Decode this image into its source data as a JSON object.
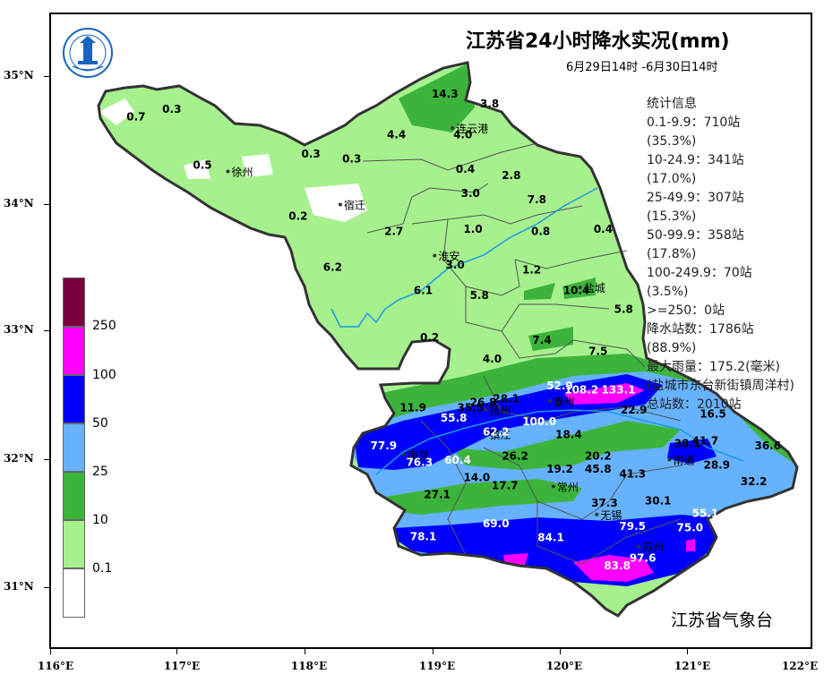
{
  "title": "江苏省24小时降水实况(mm)",
  "subtitle": "6月29日14时 -6月30日14时",
  "agency": "江苏省气象台",
  "logo_text": "江苏省气象台",
  "axes": {
    "lat_labels": [
      "35°N",
      "34°N",
      "33°N",
      "32°N",
      "31°N"
    ],
    "lon_labels": [
      "116°E",
      "117°E",
      "118°E",
      "119°E",
      "120°E",
      "121°E",
      "122°E"
    ]
  },
  "legend": {
    "labels": [
      "250",
      "100",
      "50",
      "25",
      "10",
      "0.1"
    ],
    "colors": [
      "#7a0040",
      "#ff00ff",
      "#0000ff",
      "#66b2ff",
      "#3cb43c",
      "#a6f08e",
      "#ffffff"
    ]
  },
  "stats": [
    "统计信息",
    "0.1-9.9：710站",
    "(35.3%)",
    "10-24.9：341站",
    "(17.0%)",
    "25-49.9：307站",
    "(15.3%)",
    "50-99.9：358站",
    "(17.8%)",
    "100-249.9：70站",
    "(3.5%)",
    ">=250：0站",
    "降水站数：1786站",
    "(88.9%)",
    "最大雨量：175.2(毫米)",
    "(盐城市东台新街镇周洋村)",
    "总站数：2010站"
  ],
  "cities": [
    {
      "name": "徐州",
      "lon": 117.4,
      "lat": 34.26
    },
    {
      "name": "连云港",
      "lon": 119.16,
      "lat": 34.6
    },
    {
      "name": "宿迁",
      "lon": 118.28,
      "lat": 34.0
    },
    {
      "name": "淮安",
      "lon": 119.02,
      "lat": 33.6
    },
    {
      "name": "盐城",
      "lon": 120.16,
      "lat": 33.35
    },
    {
      "name": "扬州",
      "lon": 119.42,
      "lat": 32.39
    },
    {
      "name": "泰州",
      "lon": 119.92,
      "lat": 32.46
    },
    {
      "name": "南京",
      "lon": 118.78,
      "lat": 32.04
    },
    {
      "name": "镇江",
      "lon": 119.42,
      "lat": 32.2
    },
    {
      "name": "常州",
      "lon": 119.95,
      "lat": 31.79
    },
    {
      "name": "南通",
      "lon": 120.86,
      "lat": 32.0
    },
    {
      "name": "无锡",
      "lon": 120.29,
      "lat": 31.57
    },
    {
      "name": "苏州",
      "lon": 120.62,
      "lat": 31.32
    }
  ],
  "values": [
    {
      "v": "14.3",
      "lon": 119.1,
      "lat": 34.84,
      "c": "#000"
    },
    {
      "v": "3.8",
      "lon": 119.45,
      "lat": 34.76,
      "c": "#000"
    },
    {
      "v": "0.7",
      "lon": 116.68,
      "lat": 34.66,
      "c": "#000"
    },
    {
      "v": "0.3",
      "lon": 116.96,
      "lat": 34.72,
      "c": "#000"
    },
    {
      "v": "4.4",
      "lon": 118.72,
      "lat": 34.52,
      "c": "#000"
    },
    {
      "v": "4.0",
      "lon": 119.24,
      "lat": 34.52,
      "c": "#000"
    },
    {
      "v": "0.3",
      "lon": 118.05,
      "lat": 34.37,
      "c": "#000"
    },
    {
      "v": "0.3",
      "lon": 118.37,
      "lat": 34.33,
      "c": "#000"
    },
    {
      "v": "0.5",
      "lon": 117.2,
      "lat": 34.28,
      "c": "#000"
    },
    {
      "v": "0.4",
      "lon": 119.26,
      "lat": 34.25,
      "c": "#000"
    },
    {
      "v": "2.8",
      "lon": 119.62,
      "lat": 34.2,
      "c": "#000"
    },
    {
      "v": "3.0",
      "lon": 119.3,
      "lat": 34.06,
      "c": "#000"
    },
    {
      "v": "7.8",
      "lon": 119.82,
      "lat": 34.01,
      "c": "#000"
    },
    {
      "v": "0.2",
      "lon": 117.95,
      "lat": 33.88,
      "c": "#000"
    },
    {
      "v": "2.7",
      "lon": 118.7,
      "lat": 33.76,
      "c": "#000"
    },
    {
      "v": "1.0",
      "lon": 119.32,
      "lat": 33.78,
      "c": "#000"
    },
    {
      "v": "0.8",
      "lon": 119.85,
      "lat": 33.76,
      "c": "#000"
    },
    {
      "v": "0.4",
      "lon": 120.34,
      "lat": 33.78,
      "c": "#000"
    },
    {
      "v": "6.2",
      "lon": 118.22,
      "lat": 33.48,
      "c": "#000"
    },
    {
      "v": "3.0",
      "lon": 119.18,
      "lat": 33.5,
      "c": "#000"
    },
    {
      "v": "1.2",
      "lon": 119.78,
      "lat": 33.46,
      "c": "#000"
    },
    {
      "v": "6.1",
      "lon": 118.93,
      "lat": 33.3,
      "c": "#000"
    },
    {
      "v": "5.8",
      "lon": 119.37,
      "lat": 33.26,
      "c": "#000"
    },
    {
      "v": "10.4",
      "lon": 120.13,
      "lat": 33.3,
      "c": "#000"
    },
    {
      "v": "5.8",
      "lon": 120.5,
      "lat": 33.15,
      "c": "#000"
    },
    {
      "v": "0.2",
      "lon": 118.98,
      "lat": 32.93,
      "c": "#000"
    },
    {
      "v": "7.4",
      "lon": 119.86,
      "lat": 32.91,
      "c": "#000"
    },
    {
      "v": "7.5",
      "lon": 120.3,
      "lat": 32.82,
      "c": "#000"
    },
    {
      "v": "4.0",
      "lon": 119.47,
      "lat": 32.76,
      "c": "#000"
    },
    {
      "v": "52.9",
      "lon": 120.0,
      "lat": 32.55,
      "c": "#fff"
    },
    {
      "v": "108.2",
      "lon": 120.17,
      "lat": 32.52,
      "c": "#fff"
    },
    {
      "v": "133.1",
      "lon": 120.46,
      "lat": 32.52,
      "c": "#fff"
    },
    {
      "v": "28.1",
      "lon": 119.58,
      "lat": 32.45,
      "c": "#000"
    },
    {
      "v": "26.8",
      "lon": 119.4,
      "lat": 32.42,
      "c": "#000"
    },
    {
      "v": "11.9",
      "lon": 118.85,
      "lat": 32.38,
      "c": "#000"
    },
    {
      "v": "35.5",
      "lon": 119.3,
      "lat": 32.38,
      "c": "#000"
    },
    {
      "v": "22.9",
      "lon": 120.58,
      "lat": 32.36,
      "c": "#000"
    },
    {
      "v": "16.5",
      "lon": 121.2,
      "lat": 32.33,
      "c": "#000"
    },
    {
      "v": "55.8",
      "lon": 119.17,
      "lat": 32.3,
      "c": "#fff"
    },
    {
      "v": "100.0",
      "lon": 119.84,
      "lat": 32.27,
      "c": "#fff"
    },
    {
      "v": "62.2",
      "lon": 119.5,
      "lat": 32.19,
      "c": "#fff"
    },
    {
      "v": "18.4",
      "lon": 120.07,
      "lat": 32.17,
      "c": "#000"
    },
    {
      "v": "38.1",
      "lon": 121.0,
      "lat": 32.1,
      "c": "#000"
    },
    {
      "v": "41.7",
      "lon": 121.14,
      "lat": 32.12,
      "c": "#000"
    },
    {
      "v": "36.6",
      "lon": 121.63,
      "lat": 32.08,
      "c": "#000"
    },
    {
      "v": "77.9",
      "lon": 118.62,
      "lat": 32.08,
      "c": "#fff"
    },
    {
      "v": "76.3",
      "lon": 118.9,
      "lat": 31.95,
      "c": "#fff"
    },
    {
      "v": "60.4",
      "lon": 119.2,
      "lat": 31.97,
      "c": "#fff"
    },
    {
      "v": "26.2",
      "lon": 119.65,
      "lat": 32.0,
      "c": "#000"
    },
    {
      "v": "20.2",
      "lon": 120.3,
      "lat": 32.0,
      "c": "#000"
    },
    {
      "v": "28.9",
      "lon": 121.23,
      "lat": 31.93,
      "c": "#000"
    },
    {
      "v": "19.2",
      "lon": 120.0,
      "lat": 31.9,
      "c": "#000"
    },
    {
      "v": "45.8",
      "lon": 120.3,
      "lat": 31.9,
      "c": "#000"
    },
    {
      "v": "41.3",
      "lon": 120.57,
      "lat": 31.86,
      "c": "#000"
    },
    {
      "v": "32.2",
      "lon": 121.52,
      "lat": 31.8,
      "c": "#000"
    },
    {
      "v": "14.0",
      "lon": 119.35,
      "lat": 31.83,
      "c": "#000"
    },
    {
      "v": "17.7",
      "lon": 119.57,
      "lat": 31.77,
      "c": "#000"
    },
    {
      "v": "27.1",
      "lon": 119.04,
      "lat": 31.7,
      "c": "#000"
    },
    {
      "v": "37.3",
      "lon": 120.35,
      "lat": 31.63,
      "c": "#000"
    },
    {
      "v": "30.1",
      "lon": 120.77,
      "lat": 31.65,
      "c": "#000"
    },
    {
      "v": "55.1",
      "lon": 121.14,
      "lat": 31.55,
      "c": "#fff"
    },
    {
      "v": "69.0",
      "lon": 119.5,
      "lat": 31.47,
      "c": "#fff"
    },
    {
      "v": "79.5",
      "lon": 120.57,
      "lat": 31.45,
      "c": "#fff"
    },
    {
      "v": "75.0",
      "lon": 121.02,
      "lat": 31.44,
      "c": "#fff"
    },
    {
      "v": "78.1",
      "lon": 118.93,
      "lat": 31.37,
      "c": "#fff"
    },
    {
      "v": "84.1",
      "lon": 119.93,
      "lat": 31.36,
      "c": "#fff"
    },
    {
      "v": "97.6",
      "lon": 120.65,
      "lat": 31.2,
      "c": "#fff"
    },
    {
      "v": "83.8",
      "lon": 120.45,
      "lat": 31.14,
      "c": "#fff"
    }
  ]
}
